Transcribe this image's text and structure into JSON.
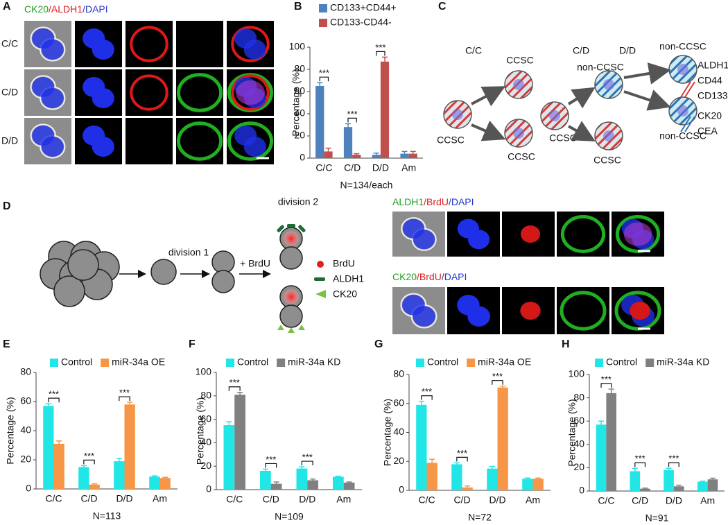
{
  "panel_labels": [
    "A",
    "B",
    "C",
    "D",
    "E",
    "F",
    "G",
    "H"
  ],
  "panel_a": {
    "stain": [
      {
        "text": "CK20",
        "color": "#1f9e1f"
      },
      {
        "text": "/ALDH1",
        "color": "#e01b1b"
      },
      {
        "text": "/DAPI",
        "color": "#2336c8"
      }
    ],
    "rows": [
      "C/C",
      "C/D",
      "D/D"
    ]
  },
  "panel_c": {
    "headers": [
      "C/C",
      "C/D",
      "D/D"
    ],
    "cells": [
      "CCSC",
      "CCSC",
      "CCSC",
      "CCSC",
      "non-CCSC",
      "CCSC",
      "non-CCSC",
      "non-CCSC"
    ],
    "markers_red": [
      "ALDH1",
      "CD44",
      "CD133"
    ],
    "markers_blue": [
      "CK20",
      "CEA"
    ]
  },
  "panel_d": {
    "steps": [
      "division 1",
      "+ BrdU",
      "division 2"
    ],
    "legend": [
      "BrdU",
      "ALDH1",
      "CK20"
    ],
    "stains": [
      [
        {
          "text": "ALDH1",
          "color": "#1f9e1f"
        },
        {
          "text": "/BrdU",
          "color": "#e01b1b"
        },
        {
          "text": "/DAPI",
          "color": "#2336c8"
        }
      ],
      [
        {
          "text": "CK20",
          "color": "#1f9e1f"
        },
        {
          "text": "/BrdU",
          "color": "#e01b1b"
        },
        {
          "text": "/DAPI",
          "color": "#2336c8"
        }
      ]
    ]
  },
  "chart_data": [
    {
      "type": "bar",
      "categories": [
        "C/C",
        "C/D",
        "D/D",
        "Am"
      ],
      "ylabel": "Percentage (%)",
      "xlabel": "N=134/each",
      "ylim": [
        0,
        100
      ],
      "yticks": [
        0,
        20,
        40,
        60,
        80,
        100
      ],
      "significance": [
        "***",
        "***",
        "***",
        null
      ],
      "series": [
        {
          "name": "CD133+CD44+",
          "color": "#4f81bd",
          "values": [
            65,
            28,
            3,
            4
          ],
          "errors": [
            3,
            3,
            1.5,
            2
          ]
        },
        {
          "name": "CD133-CD44-",
          "color": "#c0504d",
          "values": [
            6,
            3,
            87,
            4
          ],
          "errors": [
            3,
            1,
            4,
            2
          ]
        }
      ]
    },
    {
      "type": "bar",
      "categories": [
        "C/C",
        "C/D",
        "D/D",
        "Am"
      ],
      "ylabel": "Percentage (%)",
      "xlabel": "N=113",
      "ylim": [
        0,
        80
      ],
      "yticks": [
        0,
        20,
        40,
        60,
        80
      ],
      "significance": [
        "***",
        "***",
        "***",
        null
      ],
      "series": [
        {
          "name": "Control",
          "color": "#22e6e6",
          "values": [
            57,
            15,
            19,
            8.5
          ],
          "errors": [
            1.5,
            1,
            2,
            0.5
          ]
        },
        {
          "name": "miR-34a OE",
          "color": "#f79646",
          "values": [
            31,
            3,
            58,
            7.5
          ],
          "errors": [
            2,
            0.5,
            1.5,
            0.5
          ]
        }
      ]
    },
    {
      "type": "bar",
      "categories": [
        "C/C",
        "C/D",
        "D/D",
        "Am"
      ],
      "ylabel": "Percentage (%)",
      "xlabel": "N=109",
      "ylim": [
        0,
        100
      ],
      "yticks": [
        0,
        20,
        40,
        60,
        80,
        100
      ],
      "significance": [
        "***",
        "***",
        "***",
        null
      ],
      "series": [
        {
          "name": "Control",
          "color": "#22e6e6",
          "values": [
            55,
            16,
            18,
            11
          ],
          "errors": [
            3,
            1.5,
            1.5,
            0.5
          ]
        },
        {
          "name": "miR-34a KD",
          "color": "#808080",
          "values": [
            81,
            5,
            8,
            6
          ],
          "errors": [
            2,
            1.5,
            1,
            0.5
          ]
        }
      ]
    },
    {
      "type": "bar",
      "categories": [
        "C/C",
        "C/D",
        "D/D",
        "Am"
      ],
      "ylabel": "Percentage (%)",
      "xlabel": "N=72",
      "ylim": [
        0,
        80
      ],
      "yticks": [
        0,
        20,
        40,
        60,
        80
      ],
      "significance": [
        "***",
        "***",
        "***",
        null
      ],
      "series": [
        {
          "name": "Control",
          "color": "#22e6e6",
          "values": [
            59,
            18,
            15,
            8
          ],
          "errors": [
            2.5,
            1,
            1.5,
            0.5
          ]
        },
        {
          "name": "miR-34a OE",
          "color": "#f79646",
          "values": [
            19,
            2,
            71,
            8
          ],
          "errors": [
            2.5,
            1,
            1,
            0.5
          ]
        }
      ]
    },
    {
      "type": "bar",
      "categories": [
        "C/C",
        "C/D",
        "D/D",
        "Am"
      ],
      "ylabel": "Percentage (%)",
      "xlabel": "N=91",
      "ylim": [
        0,
        100
      ],
      "yticks": [
        0,
        20,
        40,
        60,
        80,
        100
      ],
      "significance": [
        "***",
        "***",
        "***",
        null
      ],
      "series": [
        {
          "name": "Control",
          "color": "#22e6e6",
          "values": [
            57,
            17,
            18,
            8
          ],
          "errors": [
            3,
            2.5,
            1.5,
            0.5
          ]
        },
        {
          "name": "miR-34a KD",
          "color": "#808080",
          "values": [
            84,
            2,
            4,
            10
          ],
          "errors": [
            3.5,
            0.5,
            1,
            1
          ]
        }
      ]
    }
  ]
}
